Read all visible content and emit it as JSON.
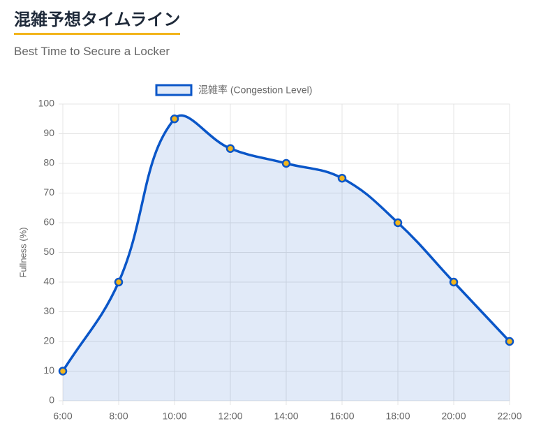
{
  "chart_data": {
    "type": "line",
    "title": "混雑予想タイムライン",
    "subtitle": "Best Time to Secure a Locker",
    "y_label": "Fullness (%)",
    "categories": [
      "6:00",
      "8:00",
      "10:00",
      "12:00",
      "14:00",
      "16:00",
      "18:00",
      "20:00",
      "22:00"
    ],
    "series": [
      {
        "name": "混雑率 (Congestion Level)",
        "color": "#0a56c8",
        "point_color": "#f2b51c",
        "values": [
          10,
          40,
          95,
          85,
          80,
          75,
          60,
          40,
          20
        ]
      }
    ],
    "ylim": [
      0,
      100
    ],
    "yticks": [
      0,
      10,
      20,
      30,
      40,
      50,
      60,
      70,
      80,
      90,
      100
    ],
    "grid": true,
    "fill": true,
    "legend": "top"
  }
}
